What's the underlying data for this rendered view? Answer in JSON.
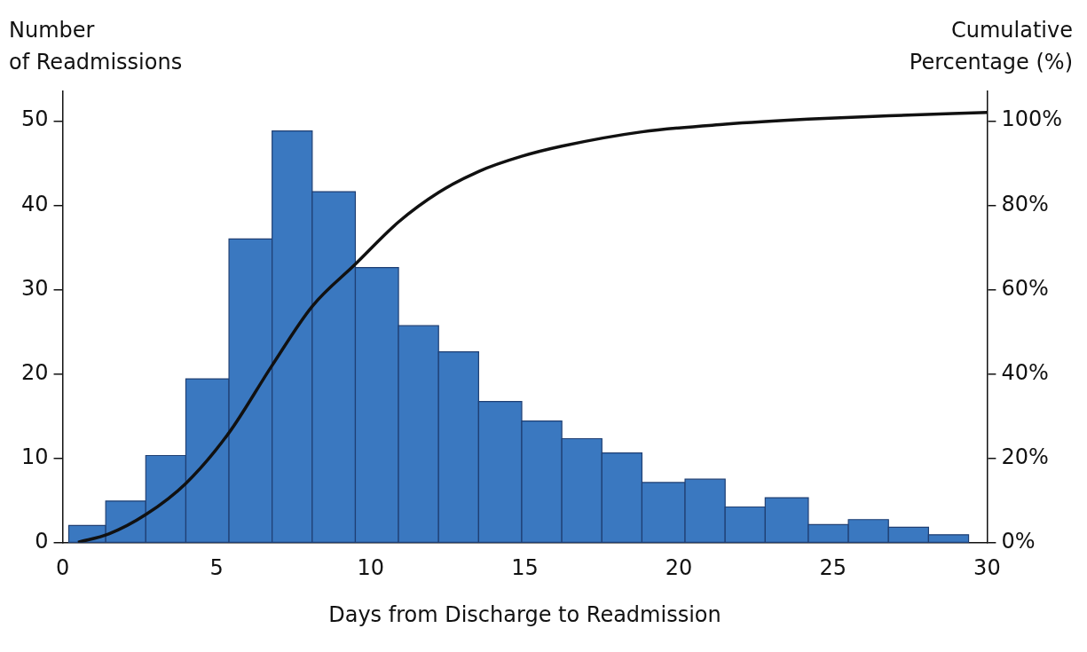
{
  "chart_data": {
    "type": "histogram",
    "bins": [
      0.2,
      1.4,
      2.7,
      4.0,
      5.4,
      6.8,
      8.1,
      9.5,
      10.9,
      12.2,
      13.5,
      14.9,
      16.2,
      17.5,
      18.8,
      20.2,
      21.5,
      22.8,
      24.2,
      25.5,
      26.8,
      28.1,
      29.4
    ],
    "values": [
      2,
      4.9,
      10.3,
      19.4,
      36,
      48.8,
      41.6,
      32.6,
      25.7,
      22.6,
      16.7,
      14.4,
      12.3,
      10.6,
      7.1,
      7.5,
      4.2,
      5.3,
      2.1,
      2.7,
      1.8,
      0.9
    ],
    "color": "#3a78c0",
    "series": [
      {
        "type": "line",
        "axis": "y2",
        "color": "#111111",
        "marker": "none",
        "x": [
          0.5,
          1.5,
          2.7,
          4.0,
          5.4,
          6.8,
          8.1,
          9.5,
          10.9,
          12.2,
          13.5,
          14.9,
          16.2,
          18.8,
          21.5,
          24.2,
          26.8,
          30
        ],
        "values": [
          0,
          2,
          6.6,
          14,
          26,
          42,
          56,
          66,
          76,
          83,
          88,
          91.6,
          94,
          97.4,
          99.2,
          100.4,
          101.2,
          102
        ]
      }
    ],
    "xlabel": "Days from Discharge to Readmission",
    "ylabel": "Number\nof Readmissions",
    "y2label": "Cumulative\nPercentage (%)",
    "xlim": [
      0,
      30
    ],
    "xticks": [
      0,
      5,
      10,
      15,
      20,
      25,
      30
    ],
    "ylim": [
      0,
      53.5
    ],
    "yticks": [
      0,
      10,
      20,
      30,
      40,
      50
    ],
    "y2lim": [
      0,
      107
    ],
    "y2ticks": [
      {
        "value": 0,
        "label": "0%"
      },
      {
        "value": 20,
        "label": "20%"
      },
      {
        "value": 40,
        "label": "40%"
      },
      {
        "value": 60,
        "label": "60%"
      },
      {
        "value": 80,
        "label": "80%"
      },
      {
        "value": 100,
        "label": "100%"
      }
    ]
  }
}
